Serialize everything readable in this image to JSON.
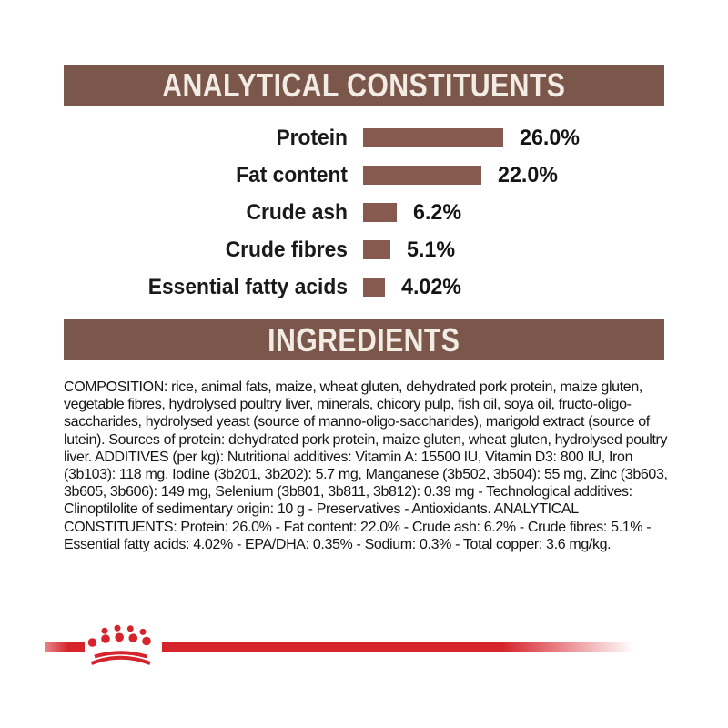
{
  "colors": {
    "page_bg": "#ffffff",
    "banner_bg": "#7a574a",
    "banner_text": "#f2ece5",
    "bar_fill": "#865a4e",
    "body_text": "#141414",
    "accent_red": "#d5242c"
  },
  "sections": {
    "analytical": {
      "title": "ANALYTICAL CONSTITUENTS"
    },
    "ingredients": {
      "title": "INGREDIENTS"
    }
  },
  "chart_data": {
    "type": "bar",
    "orientation": "horizontal",
    "title": "ANALYTICAL CONSTITUENTS",
    "categories": [
      "Protein",
      "Fat content",
      "Crude ash",
      "Crude fibres",
      "Essential fatty acids"
    ],
    "values": [
      26.0,
      22.0,
      6.2,
      5.1,
      4.02
    ],
    "value_labels": [
      "26.0%",
      "22.0%",
      "6.2%",
      "5.1%",
      "4.02%"
    ],
    "xlabel": "",
    "ylabel": "",
    "xlim": [
      0,
      28
    ],
    "grid": false,
    "legend": false,
    "bar_color": "#865a4e"
  },
  "composition": {
    "text": "COMPOSITION: rice, animal fats, maize, wheat gluten, dehydrated pork protein, maize gluten, vegetable fibres, hydrolysed poultry liver, minerals, chicory pulp, fish oil, soya oil, fructo-oligo-saccharides, hydrolysed yeast (source of manno-oligo-saccharides), marigold extract (source of lutein). Sources of protein: dehydrated pork protein, maize gluten, wheat gluten, hydrolysed poultry liver. ADDITIVES (per kg): Nutritional additives: Vitamin A: 15500 IU, Vitamin D3: 800 IU, Iron (3b103): 118 mg, Iodine (3b201, 3b202): 5.7 mg, Manganese (3b502, 3b504): 55 mg, Zinc (3b603, 3b605, 3b606): 149 mg, Selenium (3b801, 3b811, 3b812): 0.39 mg - Technological additives: Clinoptilolite of sedimentary origin: 10 g - Preservatives - Antioxidants. ANALYTICAL CONSTITUENTS: Protein: 26.0% - Fat content: 22.0% - Crude ash: 6.2% - Crude fibres: 5.1% - Essential fatty acids: 4.02% - EPA/DHA: 0.35% - Sodium: 0.3% - Total copper: 3.6 mg/kg."
  },
  "branding": {
    "logo_icon": "royal-canin-crown-icon",
    "divider": "red-line"
  }
}
